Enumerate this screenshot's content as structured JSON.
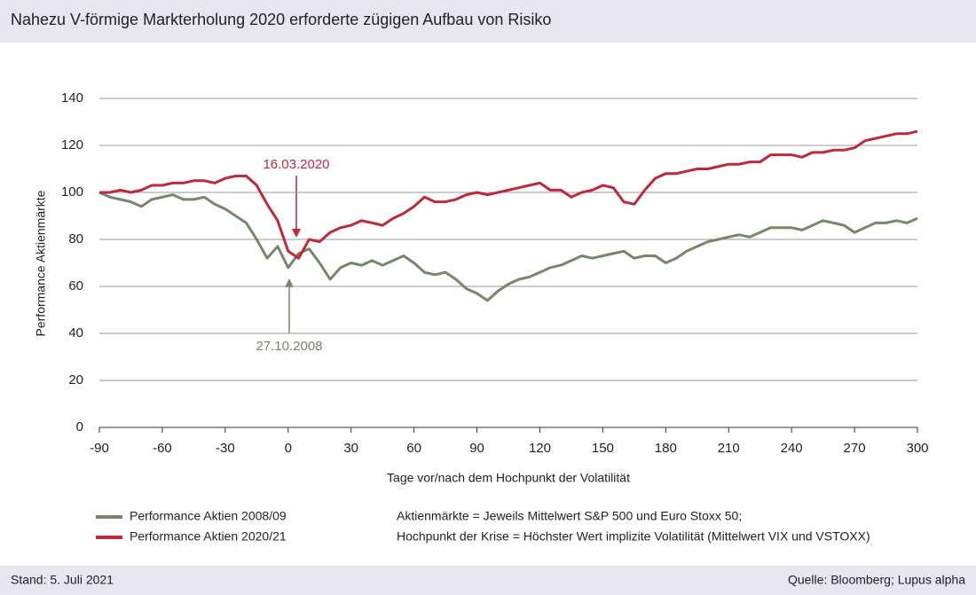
{
  "chart_data": {
    "type": "line",
    "title": "Nahezu V-förmige Markterholung 2020 erforderte zügigen Aufbau von Risiko",
    "x_label": "Tage vor/nach dem Hochpunkt der Volatilität",
    "y_label": "Performance Aktienmärkte",
    "x": [
      -90,
      -85,
      -80,
      -75,
      -70,
      -65,
      -60,
      -55,
      -50,
      -45,
      -40,
      -35,
      -30,
      -25,
      -20,
      -15,
      -10,
      -5,
      0,
      5,
      10,
      15,
      20,
      25,
      30,
      35,
      40,
      45,
      50,
      55,
      60,
      65,
      70,
      75,
      80,
      85,
      90,
      95,
      100,
      105,
      110,
      115,
      120,
      125,
      130,
      135,
      140,
      145,
      150,
      155,
      160,
      165,
      170,
      175,
      180,
      185,
      190,
      195,
      200,
      205,
      210,
      215,
      220,
      225,
      230,
      235,
      240,
      245,
      250,
      255,
      260,
      265,
      270,
      275,
      280,
      285,
      290,
      295,
      300
    ],
    "series": [
      {
        "name": "Performance Aktien 2008/09",
        "color": "#77876b",
        "values": [
          100,
          98,
          97,
          96,
          94,
          97,
          98,
          99,
          97,
          97,
          98,
          95,
          93,
          90,
          87,
          80,
          72,
          77,
          68,
          74,
          76,
          70,
          63,
          68,
          70,
          69,
          71,
          69,
          71,
          73,
          70,
          66,
          65,
          66,
          63,
          59,
          57,
          54,
          58,
          61,
          63,
          64,
          66,
          68,
          69,
          71,
          73,
          72,
          73,
          74,
          75,
          72,
          73,
          73,
          70,
          72,
          75,
          77,
          79,
          80,
          81,
          82,
          81,
          83,
          85,
          85,
          85,
          84,
          86,
          88,
          87,
          86,
          83,
          85,
          87,
          87,
          88,
          87,
          89
        ]
      },
      {
        "name": "Performance Aktien 2020/21",
        "color": "#c0283c",
        "values": [
          100,
          100,
          101,
          100,
          101,
          103,
          103,
          104,
          104,
          105,
          105,
          104,
          106,
          107,
          107,
          103,
          95,
          88,
          75,
          72,
          80,
          79,
          83,
          85,
          86,
          88,
          87,
          86,
          89,
          91,
          94,
          98,
          96,
          96,
          97,
          99,
          100,
          99,
          100,
          101,
          102,
          103,
          104,
          101,
          101,
          98,
          100,
          101,
          103,
          102,
          96,
          95,
          101,
          106,
          108,
          108,
          109,
          110,
          110,
          111,
          112,
          112,
          113,
          113,
          116,
          116,
          116,
          115,
          117,
          117,
          118,
          118,
          119,
          122,
          123,
          124,
          125,
          125,
          126
        ]
      }
    ],
    "xlim": [
      -90,
      300
    ],
    "xticks": [
      -90,
      -60,
      -30,
      0,
      30,
      60,
      90,
      120,
      150,
      180,
      210,
      240,
      270,
      300
    ],
    "ylim": [
      0,
      140
    ],
    "yticks": [
      0,
      20,
      40,
      60,
      80,
      100,
      120,
      140
    ],
    "grid": true,
    "annotations": [
      "16.03.2020",
      "27.10.2008"
    ],
    "notes": [
      "Aktienmärkte = Jeweils Mittelwert S&P 500 und Euro Stoxx 50;",
      "Hochpunkt der Krise = Höchster Wert implizite Volatilität (Mittelwert VIX und VSTOXX)"
    ],
    "footer_left": "Stand: 5. Juli 2021",
    "footer_right": "Quelle: Bloomberg; Lupus alpha"
  }
}
